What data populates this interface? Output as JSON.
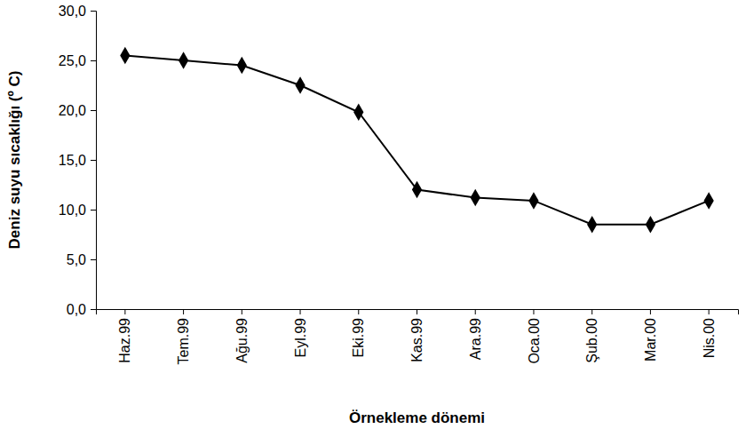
{
  "chart_data": {
    "type": "line",
    "x_label": "Örnekleme dönemi",
    "y_label": "Deniz suyu sıcaklığı (º C)",
    "categories": [
      "Haz.99",
      "Tem.99",
      "Ağu.99",
      "Eyl.99",
      "Eki.99",
      "Kas.99",
      "Ara.99",
      "Oca.00",
      "Şub.00",
      "Mar.00",
      "Nis.00"
    ],
    "values": [
      25.5,
      25.0,
      24.5,
      22.5,
      19.8,
      12.0,
      11.2,
      10.9,
      8.5,
      8.5,
      10.9
    ],
    "color": "#000000",
    "marker": "diamond",
    "line_style": "solid",
    "ylim": [
      0,
      30
    ],
    "yticks": [
      {
        "value": 0,
        "label": "0,0"
      },
      {
        "value": 5,
        "label": "5,0"
      },
      {
        "value": 10,
        "label": "10,0"
      },
      {
        "value": 15,
        "label": "15,0"
      },
      {
        "value": 20,
        "label": "20,0"
      },
      {
        "value": 25,
        "label": "25,0"
      },
      {
        "value": 30,
        "label": "30,0"
      }
    ],
    "grid": false
  }
}
